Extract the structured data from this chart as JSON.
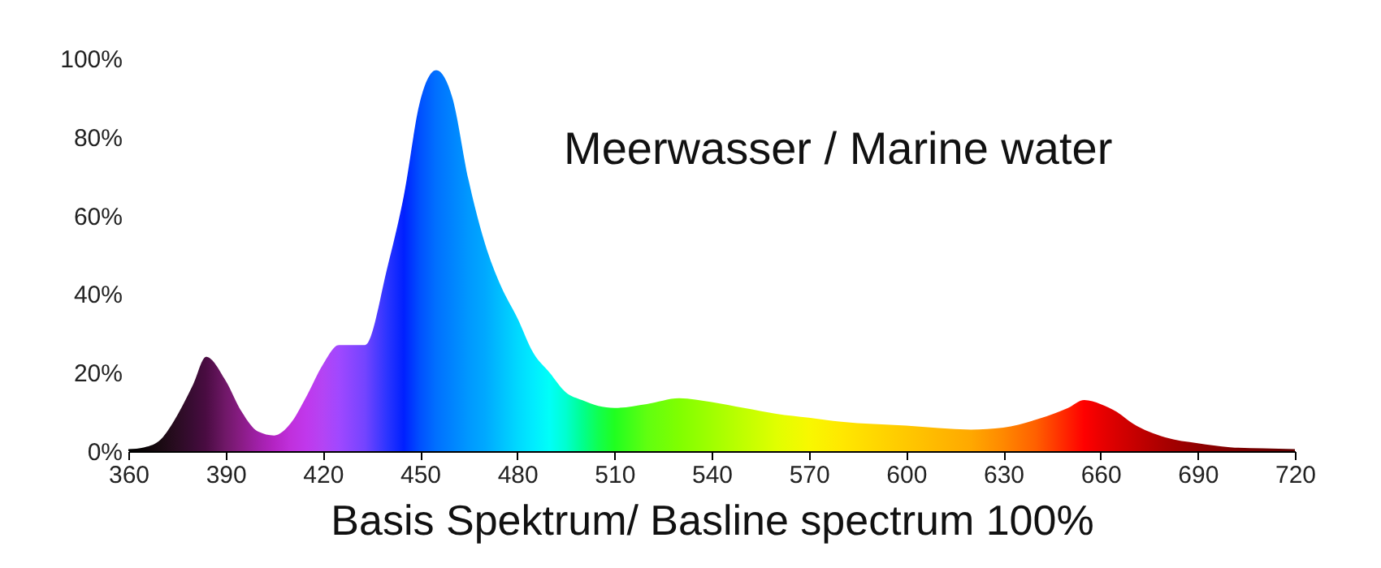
{
  "chart_data": {
    "type": "area",
    "xlabel": "Basis Spektrum/ Basline spectrum 100%",
    "annotations": [
      "Meerwasser / Marine water"
    ],
    "xlim": [
      360,
      720
    ],
    "xticks": [
      360,
      390,
      420,
      450,
      480,
      510,
      540,
      570,
      600,
      630,
      660,
      690,
      720
    ],
    "ylim": [
      0,
      100
    ],
    "yticks": [
      {
        "value": 0,
        "label": "0%"
      },
      {
        "value": 20,
        "label": "20%"
      },
      {
        "value": 40,
        "label": "40%"
      },
      {
        "value": 60,
        "label": "60%"
      },
      {
        "value": 80,
        "label": "80%"
      },
      {
        "value": 100,
        "label": "100%"
      }
    ],
    "grid": false,
    "x": [
      360,
      365,
      370,
      375,
      380,
      384,
      390,
      395,
      400,
      405,
      410,
      415,
      420,
      425,
      433,
      440,
      445,
      450,
      455,
      460,
      465,
      470,
      475,
      480,
      485,
      490,
      495,
      500,
      505,
      510,
      520,
      530,
      540,
      550,
      560,
      570,
      580,
      600,
      620,
      630,
      640,
      650,
      655,
      660,
      665,
      670,
      680,
      690,
      700,
      710,
      720
    ],
    "series": [
      {
        "values": [
          0.5,
          1,
          3,
          9,
          17,
          24,
          18,
          10,
          5,
          4,
          7,
          14,
          22,
          27,
          27,
          47,
          65,
          89,
          97,
          90,
          69,
          53,
          42,
          34,
          25,
          20,
          15,
          13,
          11.5,
          11,
          12,
          13.5,
          12.5,
          11,
          9.5,
          8.5,
          7.5,
          6.5,
          5.5,
          6,
          8,
          11,
          13,
          12,
          10,
          7,
          3.5,
          2,
          1,
          0.7,
          0.5
        ],
        "colors": [
          "#000000",
          "#0a0406",
          "#1a0a12",
          "#2a0c22",
          "#3a0c34",
          "#4a0c42",
          "#701868",
          "#8a1c86",
          "#a020a8",
          "#b424c4",
          "#c030dc",
          "#c038ec",
          "#b444f4",
          "#a048ff",
          "#7444ff",
          "#2a34ff",
          "#0020ff",
          "#0050ff",
          "#0070ff",
          "#0084ff",
          "#0098ff",
          "#00a8ff",
          "#00c0ff",
          "#00d8ff",
          "#00ecff",
          "#00fff8",
          "#00ffd0",
          "#00ff90",
          "#10ff50",
          "#20ff20",
          "#60ff10",
          "#80ff00",
          "#a0ff00",
          "#c0ff00",
          "#e0ff00",
          "#f8f800",
          "#ffe800",
          "#ffc800",
          "#ffa800",
          "#ff8800",
          "#ff6000",
          "#ff2000",
          "#ff0000",
          "#ea0000",
          "#d80000",
          "#c80000",
          "#a80000",
          "#900000",
          "#800000",
          "#700000",
          "#600000"
        ]
      }
    ]
  }
}
